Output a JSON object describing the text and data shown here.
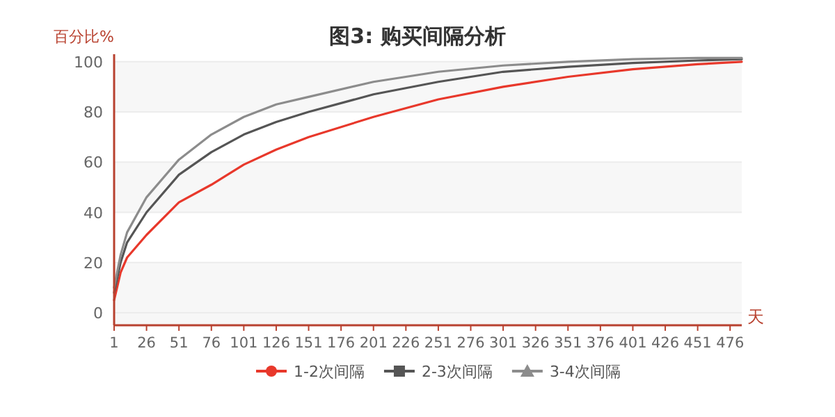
{
  "chart_data": {
    "type": "line",
    "title": "图3: 购买间隔分析",
    "xlabel": "天",
    "ylabel": "百分比%",
    "x": [
      1,
      6,
      11,
      26,
      51,
      76,
      101,
      126,
      151,
      201,
      251,
      301,
      351,
      401,
      451,
      485
    ],
    "series": [
      {
        "name": "1-2次间隔",
        "color": "#e8382b",
        "values": [
          5,
          16,
          22,
          31,
          44,
          51,
          59,
          65,
          70,
          78,
          85,
          90,
          94,
          97,
          99,
          100
        ]
      },
      {
        "name": "2-3次间隔",
        "color": "#555555",
        "values": [
          8,
          20,
          28,
          40,
          55,
          64,
          71,
          76,
          80,
          87,
          92,
          96,
          98,
          99.5,
          100.5,
          101
        ]
      },
      {
        "name": "3-4次间隔",
        "color": "#8c8c8c",
        "values": [
          10,
          23,
          32,
          46,
          61,
          71,
          78,
          83,
          86,
          92,
          96,
          98.5,
          100,
          101,
          101.5,
          101.5
        ]
      }
    ],
    "xlim": [
      1,
      485
    ],
    "xticks": [
      1,
      26,
      51,
      76,
      101,
      126,
      151,
      176,
      201,
      226,
      251,
      276,
      301,
      326,
      351,
      376,
      401,
      426,
      451,
      476
    ],
    "ylim": [
      -5,
      103
    ],
    "yticks": [
      0,
      20,
      40,
      60,
      80,
      100
    ],
    "grid": "y",
    "legend": "bottom"
  }
}
